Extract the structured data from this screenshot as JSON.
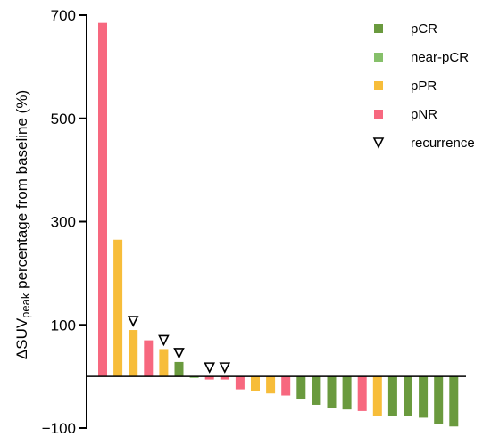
{
  "chart_data": {
    "type": "bar",
    "ylabel_main": "ΔSUV",
    "ylabel_sub": "peak",
    "ylabel_rest": " percentage from baseline (%)",
    "ylim": [
      -100,
      700
    ],
    "yticks": [
      -100,
      100,
      300,
      500,
      700
    ],
    "grid": false,
    "legend_position": "top-right",
    "legend": [
      {
        "key": "pCR",
        "label": "pCR",
        "color": "#6a9a3e",
        "kind": "bar"
      },
      {
        "key": "near-pCR",
        "label": "near-pCR",
        "color": "#86c06a",
        "kind": "bar"
      },
      {
        "key": "pPR",
        "label": "pPR",
        "color": "#f7bd3a",
        "kind": "bar"
      },
      {
        "key": "pNR",
        "label": "pNR",
        "color": "#f7687f",
        "kind": "bar"
      },
      {
        "key": "recurrence",
        "label": "recurrence",
        "kind": "marker"
      }
    ],
    "bars": [
      {
        "value": 685,
        "group": "pNR",
        "recurrence": false
      },
      {
        "value": 265,
        "group": "pPR",
        "recurrence": false
      },
      {
        "value": 90,
        "group": "pPR",
        "recurrence": true
      },
      {
        "value": 70,
        "group": "pNR",
        "recurrence": false
      },
      {
        "value": 53,
        "group": "pPR",
        "recurrence": true
      },
      {
        "value": 28,
        "group": "pCR",
        "recurrence": true
      },
      {
        "value": -3,
        "group": "near-pCR",
        "recurrence": false
      },
      {
        "value": -6,
        "group": "pNR",
        "recurrence": true
      },
      {
        "value": -6,
        "group": "pNR",
        "recurrence": true
      },
      {
        "value": -25,
        "group": "pNR",
        "recurrence": false
      },
      {
        "value": -28,
        "group": "pPR",
        "recurrence": false
      },
      {
        "value": -33,
        "group": "pPR",
        "recurrence": false
      },
      {
        "value": -37,
        "group": "pNR",
        "recurrence": false
      },
      {
        "value": -43,
        "group": "pCR",
        "recurrence": false
      },
      {
        "value": -55,
        "group": "pCR",
        "recurrence": false
      },
      {
        "value": -62,
        "group": "pCR",
        "recurrence": false
      },
      {
        "value": -64,
        "group": "pCR",
        "recurrence": false
      },
      {
        "value": -67,
        "group": "pNR",
        "recurrence": false
      },
      {
        "value": -77,
        "group": "pPR",
        "recurrence": false
      },
      {
        "value": -77,
        "group": "pCR",
        "recurrence": false
      },
      {
        "value": -77,
        "group": "pCR",
        "recurrence": false
      },
      {
        "value": -80,
        "group": "pCR",
        "recurrence": false
      },
      {
        "value": -93,
        "group": "pCR",
        "recurrence": false
      },
      {
        "value": -97,
        "group": "pCR",
        "recurrence": false
      }
    ]
  }
}
